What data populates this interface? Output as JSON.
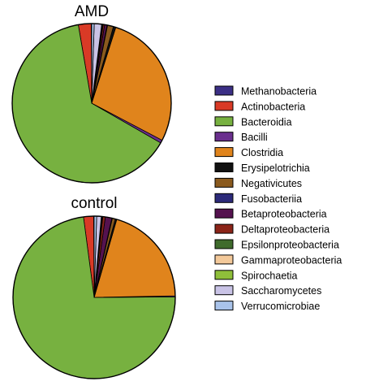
{
  "chart_data": {
    "type": "pie",
    "categories": [
      "Methanobacteria",
      "Actinobacteria",
      "Bacteroidia",
      "Bacilli",
      "Clostridia",
      "Erysipelotrichia",
      "Negativicutes",
      "Fusobacteriia",
      "Betaproteobacteria",
      "Deltaproteobacteria",
      "Epsilonproteobacteria",
      "Gammaproteobacteria",
      "Spirochaetia",
      "Saccharomycetes",
      "Verrucomicrobiae"
    ],
    "colors": [
      "#3b2f85",
      "#d93a26",
      "#77b140",
      "#6a2f8e",
      "#e0841c",
      "#111111",
      "#8a5a1e",
      "#2c2a7a",
      "#55124f",
      "#8b2418",
      "#3f6b2c",
      "#f3c99a",
      "#8fbf3a",
      "#c9c3e6",
      "#a9c3ea"
    ],
    "legend_position": "right",
    "series": [
      {
        "name": "AMD",
        "values": [
          0.1,
          2.6,
          64.0,
          0.6,
          27.8,
          0.5,
          1.2,
          0.1,
          0.5,
          0.3,
          0.1,
          0.1,
          0.1,
          1.5,
          0.5
        ]
      },
      {
        "name": "control",
        "values": [
          0.1,
          2.0,
          73.0,
          0.2,
          20.2,
          0.3,
          0.6,
          0.1,
          1.3,
          0.5,
          0.1,
          0.1,
          0.1,
          0.9,
          0.5
        ]
      }
    ]
  }
}
